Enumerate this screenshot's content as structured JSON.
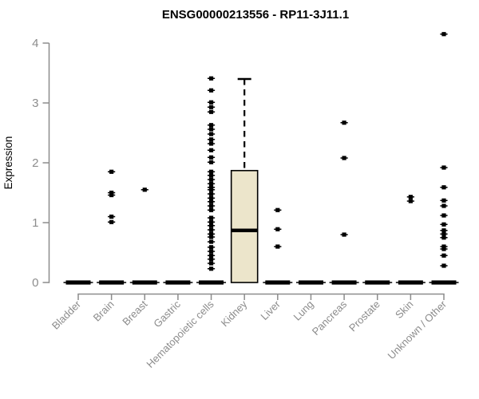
{
  "chart_data": {
    "type": "boxplot",
    "title": "ENSG00000213556 - RP11-3J11.1",
    "xlabel": "",
    "ylabel": "Expression",
    "ylim": [
      0,
      4.2
    ],
    "yticks": [
      0,
      1,
      2,
      3,
      4
    ],
    "grid": false,
    "legend": "none",
    "categories": [
      "Bladder",
      "Brain",
      "Breast",
      "Gastric",
      "Hematopoietic cells",
      "Kidney",
      "Liver",
      "Lung",
      "Pancreas",
      "Prostate",
      "Skin",
      "Unknown / Other"
    ],
    "boxes": [
      {
        "category": "Bladder",
        "q1": 0,
        "median": 0,
        "q3": 0,
        "whisker_low": 0,
        "whisker_high": 0,
        "outliers": []
      },
      {
        "category": "Brain",
        "q1": 0,
        "median": 0,
        "q3": 0,
        "whisker_low": 0,
        "whisker_high": 0,
        "outliers": [
          1.85,
          1.5,
          1.46,
          1.1,
          1.01
        ]
      },
      {
        "category": "Breast",
        "q1": 0,
        "median": 0,
        "q3": 0,
        "whisker_low": 0,
        "whisker_high": 0,
        "outliers": [
          1.55
        ]
      },
      {
        "category": "Gastric",
        "q1": 0,
        "median": 0,
        "q3": 0,
        "whisker_low": 0,
        "whisker_high": 0,
        "outliers": []
      },
      {
        "category": "Hematopoietic cells",
        "q1": 0,
        "median": 0,
        "q3": 0,
        "whisker_low": 0,
        "whisker_high": 0,
        "outliers": [
          3.41,
          3.21,
          3.01,
          2.93,
          2.85,
          2.63,
          2.56,
          2.48,
          2.39,
          2.32,
          2.21,
          2.09,
          2.01,
          1.85,
          1.79,
          1.72,
          1.65,
          1.59,
          1.55,
          1.48,
          1.41,
          1.35,
          1.28,
          1.21,
          1.08,
          1.01,
          0.95,
          0.88,
          0.81,
          0.76,
          0.68,
          0.59,
          0.52,
          0.45,
          0.39,
          0.32,
          0.23
        ]
      },
      {
        "category": "Kidney",
        "q1": 0,
        "median": 0.87,
        "q3": 1.87,
        "whisker_low": 0,
        "whisker_high": 3.4,
        "outliers": []
      },
      {
        "category": "Liver",
        "q1": 0,
        "median": 0,
        "q3": 0,
        "whisker_low": 0,
        "whisker_high": 0,
        "outliers": [
          1.21,
          0.89,
          0.6
        ]
      },
      {
        "category": "Lung",
        "q1": 0,
        "median": 0,
        "q3": 0,
        "whisker_low": 0,
        "whisker_high": 0,
        "outliers": []
      },
      {
        "category": "Pancreas",
        "q1": 0,
        "median": 0,
        "q3": 0,
        "whisker_low": 0,
        "whisker_high": 0,
        "outliers": [
          2.67,
          2.08,
          0.8
        ]
      },
      {
        "category": "Prostate",
        "q1": 0,
        "median": 0,
        "q3": 0,
        "whisker_low": 0,
        "whisker_high": 0,
        "outliers": []
      },
      {
        "category": "Skin",
        "q1": 0,
        "median": 0,
        "q3": 0,
        "whisker_low": 0,
        "whisker_high": 0,
        "outliers": [
          1.43,
          1.36
        ]
      },
      {
        "category": "Unknown / Other",
        "q1": 0,
        "median": 0,
        "q3": 0,
        "whisker_low": 0,
        "whisker_high": 0,
        "outliers": [
          4.15,
          1.92,
          1.59,
          1.37,
          1.28,
          1.12,
          0.97,
          0.87,
          0.81,
          0.75,
          0.6,
          0.56,
          0.45,
          0.28
        ]
      }
    ],
    "colors": {
      "title": "#000000",
      "axis": "#8c8c8c",
      "axis_text": "#8c8c8c",
      "box_fill": "#ece5cb",
      "box_border": "#000000",
      "median": "#000000",
      "point": "#000000",
      "background": "#ffffff"
    }
  }
}
